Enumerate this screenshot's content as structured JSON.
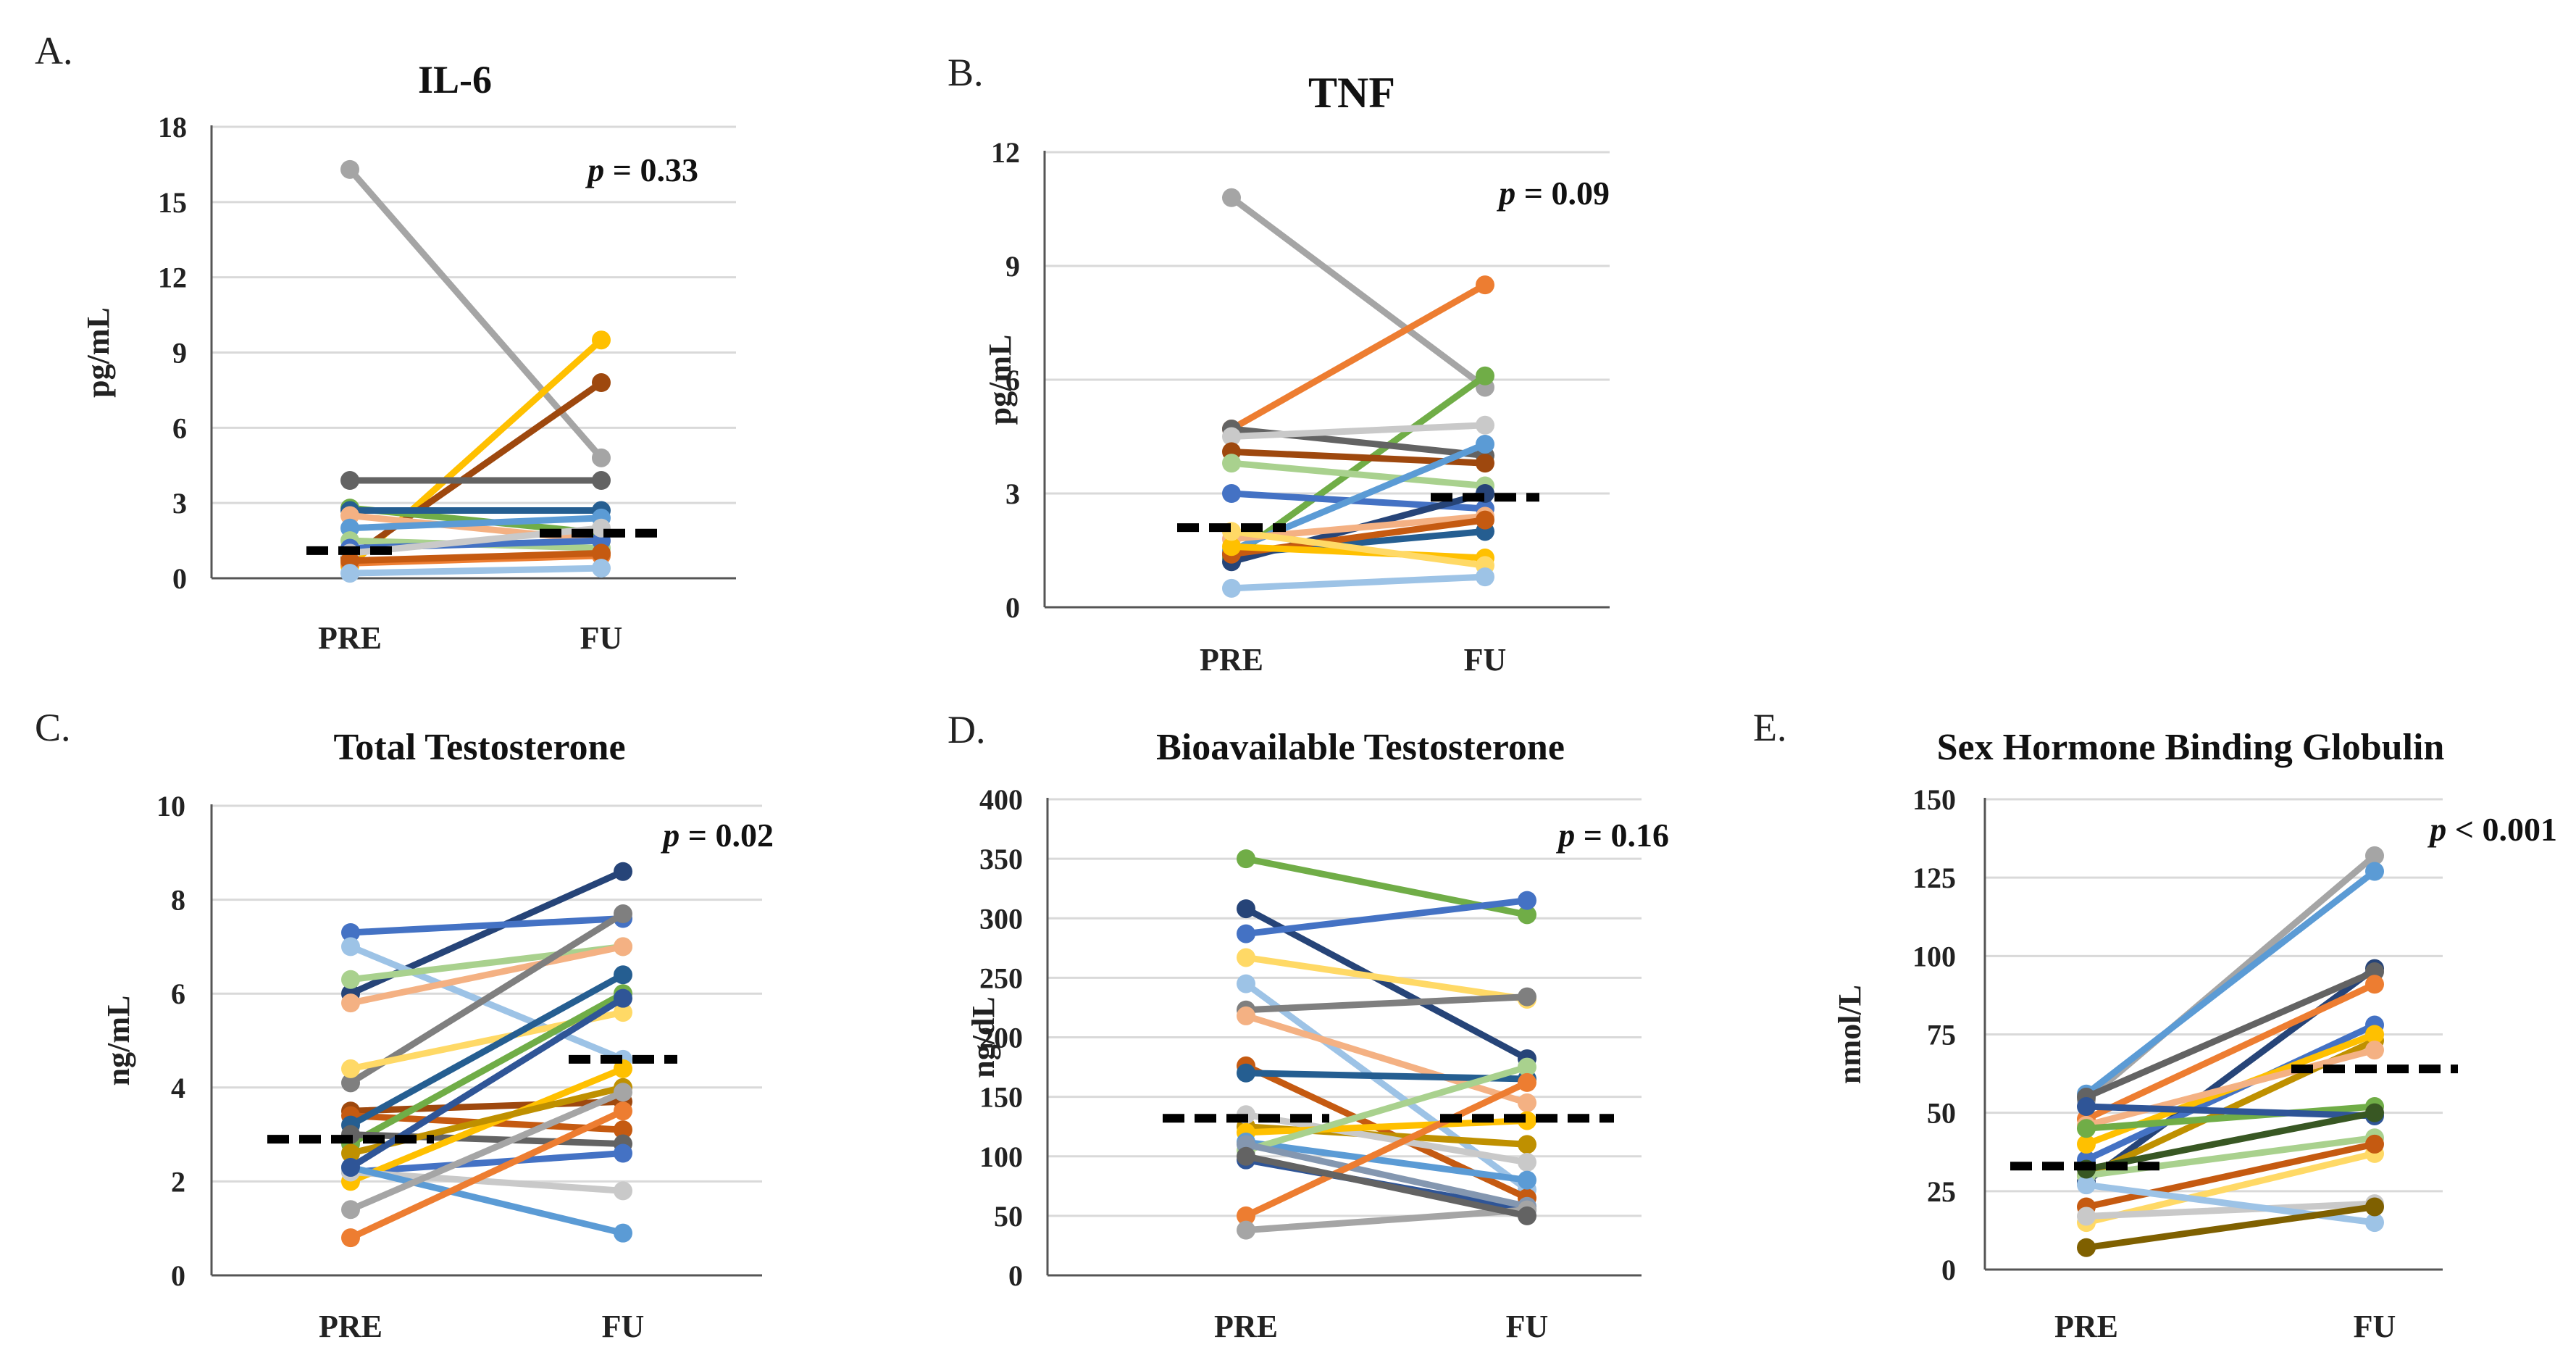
{
  "chart_data": [
    {
      "type": "line",
      "panel_label": "A.",
      "title": "IL-6",
      "ylabel": "pg/mL",
      "categories": [
        "PRE",
        "FU"
      ],
      "ylim": [
        0,
        18
      ],
      "yticks": [
        0,
        3,
        6,
        9,
        12,
        15,
        18
      ],
      "pvalue": {
        "prefix": "p",
        "text": " = 0.33"
      },
      "mean_line": [
        1.1,
        1.8
      ],
      "series": [
        {
          "color": "#a5a5a5",
          "values": [
            16.3,
            4.8
          ]
        },
        {
          "color": "#ffc000",
          "values": [
            0.5,
            9.5
          ]
        },
        {
          "color": "#9e480e",
          "values": [
            0.8,
            7.8
          ]
        },
        {
          "color": "#636363",
          "values": [
            3.9,
            3.9
          ]
        },
        {
          "color": "#70ad47",
          "values": [
            2.8,
            1.8
          ]
        },
        {
          "color": "#255e91",
          "values": [
            2.7,
            2.7
          ]
        },
        {
          "color": "#f4b183",
          "values": [
            2.5,
            1.5
          ]
        },
        {
          "color": "#5b9bd5",
          "values": [
            2.0,
            2.4
          ]
        },
        {
          "color": "#a9d18e",
          "values": [
            1.5,
            1.2
          ]
        },
        {
          "color": "#4472c4",
          "values": [
            1.2,
            1.5
          ]
        },
        {
          "color": "#c9c9c9",
          "values": [
            1.0,
            2.0
          ]
        },
        {
          "color": "#ed7d31",
          "values": [
            0.6,
            0.9
          ]
        },
        {
          "color": "#c55a11",
          "values": [
            0.7,
            1.0
          ]
        },
        {
          "color": "#9dc3e6",
          "values": [
            0.2,
            0.4
          ]
        }
      ]
    },
    {
      "type": "line",
      "panel_label": "B.",
      "title": "TNF",
      "ylabel": "pg/mL",
      "categories": [
        "PRE",
        "FU"
      ],
      "ylim": [
        0,
        12
      ],
      "yticks": [
        0,
        3,
        6,
        9,
        12
      ],
      "pvalue": {
        "prefix": "p",
        "text": " = 0.09"
      },
      "mean_line": [
        2.1,
        2.9
      ],
      "series": [
        {
          "color": "#a5a5a5",
          "values": [
            10.8,
            5.8
          ]
        },
        {
          "color": "#ed7d31",
          "values": [
            4.7,
            8.5
          ]
        },
        {
          "color": "#70ad47",
          "values": [
            1.3,
            6.1
          ]
        },
        {
          "color": "#636363",
          "values": [
            4.7,
            4.0
          ]
        },
        {
          "color": "#c9c9c9",
          "values": [
            4.5,
            4.8
          ]
        },
        {
          "color": "#9e480e",
          "values": [
            4.1,
            3.8
          ]
        },
        {
          "color": "#a9d18e",
          "values": [
            3.8,
            3.2
          ]
        },
        {
          "color": "#4472c4",
          "values": [
            3.0,
            2.6
          ]
        },
        {
          "color": "#5b9bd5",
          "values": [
            1.5,
            4.3
          ]
        },
        {
          "color": "#255e91",
          "values": [
            1.4,
            2.0
          ]
        },
        {
          "color": "#264478",
          "values": [
            1.2,
            3.0
          ]
        },
        {
          "color": "#f4b183",
          "values": [
            1.8,
            2.4
          ]
        },
        {
          "color": "#c55a11",
          "values": [
            1.4,
            2.3
          ]
        },
        {
          "color": "#ffc000",
          "values": [
            1.6,
            1.3
          ]
        },
        {
          "color": "#ffd966",
          "values": [
            2.0,
            1.1
          ]
        },
        {
          "color": "#9dc3e6",
          "values": [
            0.5,
            0.8
          ]
        }
      ]
    },
    {
      "type": "line",
      "panel_label": "C.",
      "title": "Total Testosterone",
      "ylabel": "ng/mL",
      "categories": [
        "PRE",
        "FU"
      ],
      "ylim": [
        0,
        10
      ],
      "yticks": [
        0,
        2,
        4,
        6,
        8,
        10
      ],
      "pvalue": {
        "prefix": "p",
        "text": " = 0.02"
      },
      "mean_line": [
        2.9,
        4.6
      ],
      "series": [
        {
          "color": "#264478",
          "values": [
            6.0,
            8.6
          ]
        },
        {
          "color": "#4472c4",
          "values": [
            7.3,
            7.6
          ]
        },
        {
          "color": "#9dc3e6",
          "values": [
            7.0,
            4.6
          ]
        },
        {
          "color": "#a9d18e",
          "values": [
            6.3,
            7.0
          ]
        },
        {
          "color": "#f4b183",
          "values": [
            5.8,
            7.0
          ]
        },
        {
          "color": "#7f7f7f",
          "values": [
            4.1,
            7.7
          ]
        },
        {
          "color": "#ffd966",
          "values": [
            4.4,
            5.6
          ]
        },
        {
          "color": "#9e480e",
          "values": [
            3.5,
            3.7
          ]
        },
        {
          "color": "#c55a11",
          "values": [
            3.4,
            3.1
          ]
        },
        {
          "color": "#255e91",
          "values": [
            3.2,
            6.4
          ]
        },
        {
          "color": "#70ad47",
          "values": [
            2.8,
            6.0
          ]
        },
        {
          "color": "#636363",
          "values": [
            3.0,
            2.8
          ]
        },
        {
          "color": "#4472c4",
          "values": [
            2.2,
            2.6
          ]
        },
        {
          "color": "#ffc000",
          "values": [
            2.0,
            4.4
          ]
        },
        {
          "color": "#bf9000",
          "values": [
            2.6,
            4.0
          ]
        },
        {
          "color": "#c9c9c9",
          "values": [
            2.2,
            1.8
          ]
        },
        {
          "color": "#5b9bd5",
          "values": [
            2.3,
            0.9
          ]
        },
        {
          "color": "#ed7d31",
          "values": [
            0.8,
            3.5
          ]
        },
        {
          "color": "#a5a5a5",
          "values": [
            1.4,
            3.9
          ]
        },
        {
          "color": "#2f5597",
          "values": [
            2.3,
            5.9
          ]
        }
      ]
    },
    {
      "type": "line",
      "panel_label": "D.",
      "title": "Bioavailable Testosterone",
      "ylabel": "ng/dL",
      "categories": [
        "PRE",
        "FU"
      ],
      "ylim": [
        0,
        400
      ],
      "yticks": [
        0,
        50,
        100,
        150,
        200,
        250,
        300,
        350,
        400
      ],
      "pvalue": {
        "prefix": "p",
        "text": " = 0.16"
      },
      "mean_line": [
        132,
        132
      ],
      "series": [
        {
          "color": "#70ad47",
          "values": [
            350,
            303
          ]
        },
        {
          "color": "#264478",
          "values": [
            308,
            182
          ]
        },
        {
          "color": "#4472c4",
          "values": [
            287,
            315
          ]
        },
        {
          "color": "#ffd966",
          "values": [
            267,
            232
          ]
        },
        {
          "color": "#9dc3e6",
          "values": [
            245,
            72
          ]
        },
        {
          "color": "#7f7f7f",
          "values": [
            223,
            234
          ]
        },
        {
          "color": "#f4b183",
          "values": [
            218,
            145
          ]
        },
        {
          "color": "#c55a11",
          "values": [
            176,
            65
          ]
        },
        {
          "color": "#255e91",
          "values": [
            170,
            165
          ]
        },
        {
          "color": "#bf9000",
          "values": [
            125,
            110
          ]
        },
        {
          "color": "#c9c9c9",
          "values": [
            135,
            95
          ]
        },
        {
          "color": "#ffc000",
          "values": [
            120,
            130
          ]
        },
        {
          "color": "#5b9bd5",
          "values": [
            112,
            80
          ]
        },
        {
          "color": "#a9d18e",
          "values": [
            105,
            175
          ]
        },
        {
          "color": "#2f5597",
          "values": [
            97,
            55
          ]
        },
        {
          "color": "#8497b0",
          "values": [
            110,
            58
          ]
        },
        {
          "color": "#ed7d31",
          "values": [
            50,
            162
          ]
        },
        {
          "color": "#a5a5a5",
          "values": [
            38,
            55
          ]
        },
        {
          "color": "#636363",
          "values": [
            100,
            50
          ]
        }
      ]
    },
    {
      "type": "line",
      "panel_label": "E.",
      "title": "Sex Hormone Binding Globulin",
      "ylabel": "nmol/L",
      "categories": [
        "PRE",
        "FU"
      ],
      "ylim": [
        0,
        150
      ],
      "yticks": [
        0,
        25,
        50,
        75,
        100,
        125,
        150
      ],
      "pvalue": {
        "prefix": "p",
        "text": " < 0.001"
      },
      "mean_line": [
        33,
        64
      ],
      "series": [
        {
          "color": "#a5a5a5",
          "values": [
            54,
            132
          ]
        },
        {
          "color": "#5b9bd5",
          "values": [
            56,
            127
          ]
        },
        {
          "color": "#264478",
          "values": [
            28,
            96
          ]
        },
        {
          "color": "#636363",
          "values": [
            55,
            95
          ]
        },
        {
          "color": "#ed7d31",
          "values": [
            48,
            91
          ]
        },
        {
          "color": "#4472c4",
          "values": [
            35,
            78
          ]
        },
        {
          "color": "#bf9000",
          "values": [
            30,
            73
          ]
        },
        {
          "color": "#ffc000",
          "values": [
            40,
            75
          ]
        },
        {
          "color": "#f4b183",
          "values": [
            46,
            70
          ]
        },
        {
          "color": "#70ad47",
          "values": [
            45,
            52
          ]
        },
        {
          "color": "#2f5597",
          "values": [
            52,
            49
          ]
        },
        {
          "color": "#a9d18e",
          "values": [
            30,
            42
          ]
        },
        {
          "color": "#ffd966",
          "values": [
            15,
            37
          ]
        },
        {
          "color": "#c55a11",
          "values": [
            20,
            40
          ]
        },
        {
          "color": "#c9c9c9",
          "values": [
            17,
            21
          ]
        },
        {
          "color": "#9dc3e6",
          "values": [
            27,
            15
          ]
        },
        {
          "color": "#7f6000",
          "values": [
            7,
            20
          ]
        },
        {
          "color": "#385723",
          "values": [
            32,
            50
          ]
        }
      ]
    }
  ]
}
